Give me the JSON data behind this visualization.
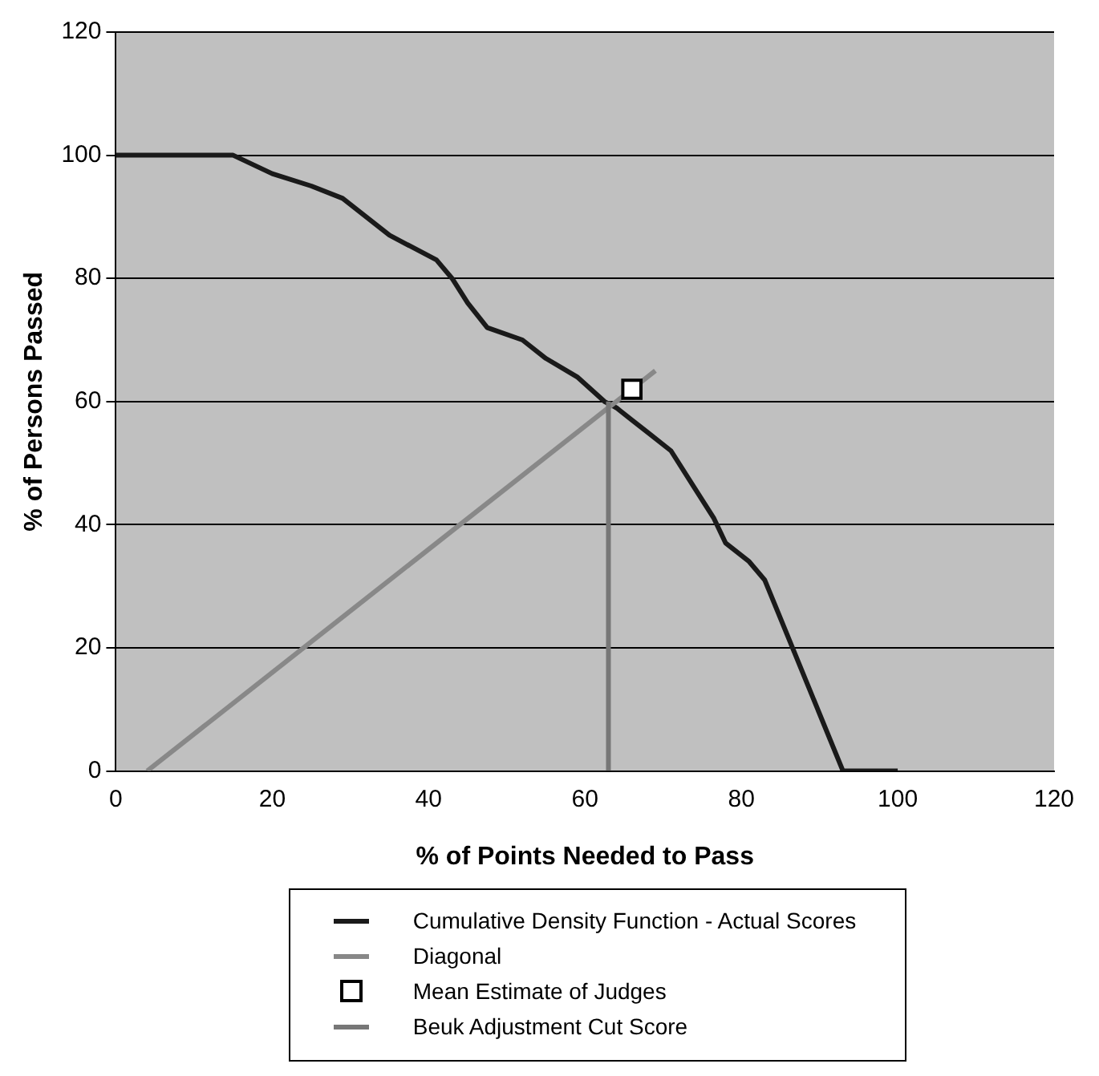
{
  "chart_data": {
    "type": "line",
    "xlabel": "% of Points Needed to Pass",
    "ylabel": "% of Persons Passed",
    "xlim": [
      0,
      120
    ],
    "xticks": [
      0,
      20,
      40,
      60,
      80,
      100,
      120
    ],
    "ylim": [
      0,
      120
    ],
    "yticks": [
      0,
      20,
      40,
      60,
      80,
      100,
      120
    ],
    "grid": "y",
    "legend": "bottom",
    "marker": "none",
    "series": [
      {
        "name": "Cumulative Density Function - Actual Scores",
        "color": "#1a1a1a",
        "x": [
          0,
          15,
          20,
          25,
          29,
          35,
          41,
          43,
          45,
          47.5,
          52,
          55,
          59,
          62.5,
          64,
          66,
          68,
          71,
          74,
          76.5,
          78,
          81,
          83,
          93,
          100
        ],
        "values": [
          100,
          100,
          97,
          95,
          93,
          87,
          83,
          80,
          76,
          72,
          70,
          67,
          64,
          60,
          59,
          57,
          55,
          52,
          46,
          41,
          37,
          34,
          31,
          0,
          0
        ]
      },
      {
        "name": "Diagonal",
        "color": "#888888",
        "x": [
          4,
          69
        ],
        "values": [
          0,
          65
        ]
      },
      {
        "name": "Mean Estimate of Judges",
        "type": "scatter",
        "marker": "square",
        "color": "#000000",
        "x": [
          66
        ],
        "values": [
          62
        ]
      },
      {
        "name": "Beuk Adjustment Cut Score",
        "color": "#777777",
        "x": [
          63,
          63
        ],
        "values": [
          0,
          60
        ]
      }
    ]
  }
}
